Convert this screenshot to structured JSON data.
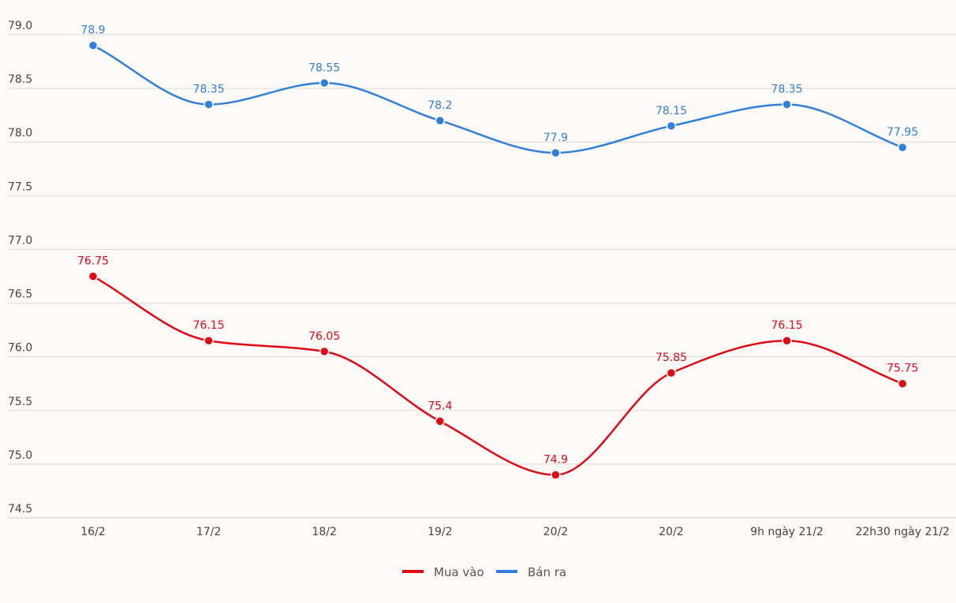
{
  "chart_data": {
    "type": "line",
    "title": "",
    "xlabel": "",
    "ylabel": "",
    "categories": [
      "16/2",
      "17/2",
      "18/2",
      "19/2",
      "20/2",
      "20/2",
      "9h ngày 21/2",
      "22h30 ngày 21/2"
    ],
    "ylim": [
      74.5,
      79.0
    ],
    "yticks": [
      "74.5",
      "75.0",
      "75.5",
      "76.0",
      "76.5",
      "77.0",
      "77.5",
      "78.0",
      "78.5",
      "79.0"
    ],
    "grid": true,
    "legend_position": "bottom-center",
    "series": [
      {
        "name": "Mua vào",
        "color": "#e30613",
        "values": [
          76.75,
          76.15,
          76.05,
          75.4,
          74.9,
          75.85,
          76.15,
          75.75
        ]
      },
      {
        "name": "Bán ra",
        "color": "#2f80dc",
        "values": [
          78.9,
          78.35,
          78.55,
          78.2,
          77.9,
          78.15,
          78.35,
          77.95
        ]
      }
    ]
  }
}
